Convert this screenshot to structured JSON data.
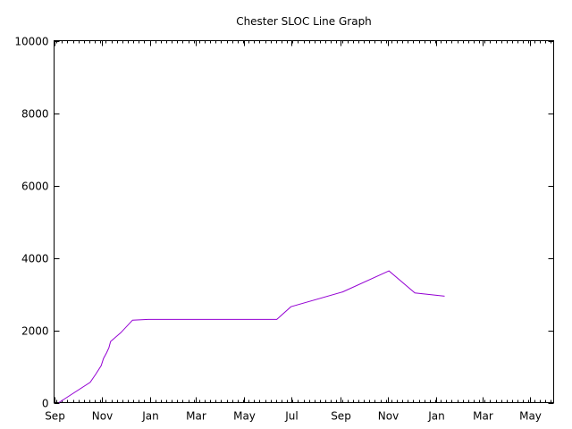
{
  "chart_data": {
    "type": "line",
    "title": "Chester SLOC Line Graph",
    "xlabel": "",
    "ylabel": "",
    "x_axis": {
      "type": "date",
      "range": [
        "2001-09-01",
        "2003-05-31"
      ],
      "ticks": [
        {
          "date": "2001-09-01",
          "label": "Sep"
        },
        {
          "date": "2001-11-01",
          "label": "Nov"
        },
        {
          "date": "2002-01-01",
          "label": "Jan"
        },
        {
          "date": "2002-03-01",
          "label": "Mar"
        },
        {
          "date": "2002-05-01",
          "label": "May"
        },
        {
          "date": "2002-07-01",
          "label": "Jul"
        },
        {
          "date": "2002-09-01",
          "label": "Sep"
        },
        {
          "date": "2002-11-01",
          "label": "Nov"
        },
        {
          "date": "2003-01-01",
          "label": "Jan"
        },
        {
          "date": "2003-03-01",
          "label": "Mar"
        },
        {
          "date": "2003-05-01",
          "label": "May"
        }
      ]
    },
    "y_axis": {
      "range": [
        0,
        10000
      ],
      "ticks": [
        0,
        2000,
        4000,
        6000,
        8000,
        10000
      ]
    },
    "grid": false,
    "legend": "none",
    "series": [
      {
        "color": "#9400d3",
        "points": [
          {
            "x": "2001-09-07",
            "y": 0
          },
          {
            "x": "2001-10-17",
            "y": 560
          },
          {
            "x": "2001-10-24",
            "y": 780
          },
          {
            "x": "2001-10-31",
            "y": 1020
          },
          {
            "x": "2001-11-03",
            "y": 1220
          },
          {
            "x": "2001-11-07",
            "y": 1380
          },
          {
            "x": "2001-11-10",
            "y": 1520
          },
          {
            "x": "2001-11-12",
            "y": 1690
          },
          {
            "x": "2001-11-25",
            "y": 1930
          },
          {
            "x": "2001-12-10",
            "y": 2280
          },
          {
            "x": "2001-12-30",
            "y": 2300
          },
          {
            "x": "2002-06-12",
            "y": 2300
          },
          {
            "x": "2002-06-30",
            "y": 2650
          },
          {
            "x": "2002-09-04",
            "y": 3060
          },
          {
            "x": "2002-11-02",
            "y": 3640
          },
          {
            "x": "2002-12-05",
            "y": 3030
          },
          {
            "x": "2003-01-12",
            "y": 2940
          }
        ]
      }
    ]
  }
}
